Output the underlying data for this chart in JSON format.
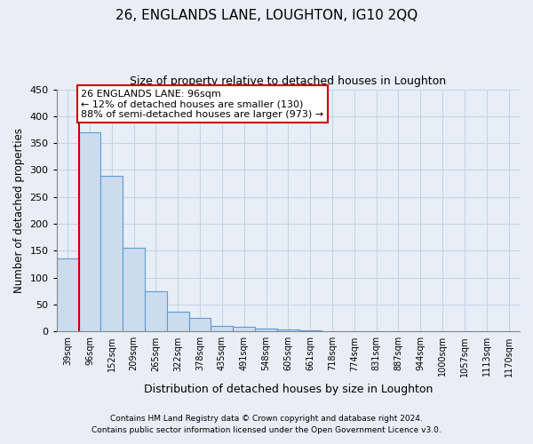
{
  "title1": "26, ENGLANDS LANE, LOUGHTON, IG10 2QQ",
  "title2": "Size of property relative to detached houses in Loughton",
  "xlabel": "Distribution of detached houses by size in Loughton",
  "ylabel": "Number of detached properties",
  "categories": [
    "39sqm",
    "96sqm",
    "152sqm",
    "209sqm",
    "265sqm",
    "322sqm",
    "378sqm",
    "435sqm",
    "491sqm",
    "548sqm",
    "605sqm",
    "661sqm",
    "718sqm",
    "774sqm",
    "831sqm",
    "887sqm",
    "944sqm",
    "1000sqm",
    "1057sqm",
    "1113sqm",
    "1170sqm"
  ],
  "values": [
    135,
    370,
    290,
    155,
    75,
    37,
    25,
    10,
    8,
    5,
    4,
    2,
    1,
    0,
    0,
    0,
    0,
    0,
    0,
    0,
    0
  ],
  "bar_color": "#ccdcee",
  "bar_edge_color": "#5b9bd5",
  "marker_index": 1,
  "marker_color": "#cc0000",
  "ylim": [
    0,
    450
  ],
  "yticks": [
    0,
    50,
    100,
    150,
    200,
    250,
    300,
    350,
    400,
    450
  ],
  "annotation_text": "26 ENGLANDS LANE: 96sqm\n← 12% of detached houses are smaller (130)\n88% of semi-detached houses are larger (973) →",
  "annotation_box_color": "#ffffff",
  "annotation_box_edge": "#cc0000",
  "footer1": "Contains HM Land Registry data © Crown copyright and database right 2024.",
  "footer2": "Contains public sector information licensed under the Open Government Licence v3.0.",
  "bg_color": "#e8eef6",
  "plot_bg_color": "#e8eef6",
  "grid_color": "#c8d4e4"
}
